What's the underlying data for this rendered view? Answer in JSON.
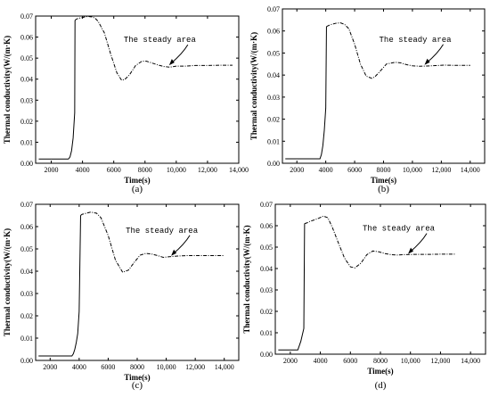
{
  "chart_data": [
    {
      "type": "line",
      "panel": "(a)",
      "xlabel": "Time(s)",
      "ylabel": "Thermal conductivity(W/(m·K)",
      "xlim": [
        1000,
        14000
      ],
      "ylim": [
        0,
        0.07
      ],
      "xticks": [
        "2000",
        "4000",
        "6000",
        "8000",
        "10,000",
        "12,000",
        "14,000"
      ],
      "yticks": [
        "0.00",
        "0.01",
        "0.02",
        "0.03",
        "0.04",
        "0.05",
        "0.06",
        "0.07"
      ],
      "annotation": {
        "text": "The steady area",
        "x": 9600,
        "y": 0.0462
      },
      "series": [
        {
          "x": [
            1200,
            3100,
            3200,
            3300,
            3400,
            3500,
            3520,
            3600,
            3700,
            3800,
            4000,
            4200,
            4400,
            4600,
            4800,
            5000,
            5400,
            5800,
            6200,
            6500,
            6700,
            7000,
            7400,
            7800,
            8100,
            8400,
            8800,
            9200,
            9600,
            10000,
            10600,
            11200,
            12000,
            12800,
            13600
          ],
          "y": [
            0.002,
            0.002,
            0.003,
            0.006,
            0.012,
            0.024,
            0.068,
            0.0685,
            0.0688,
            0.069,
            0.0693,
            0.0697,
            0.0698,
            0.0696,
            0.069,
            0.0675,
            0.062,
            0.052,
            0.043,
            0.0395,
            0.0398,
            0.042,
            0.0465,
            0.0485,
            0.0485,
            0.0478,
            0.0468,
            0.046,
            0.0457,
            0.0462,
            0.0462,
            0.0465,
            0.0465,
            0.0466,
            0.0466
          ]
        }
      ]
    },
    {
      "type": "line",
      "panel": "(b)",
      "xlabel": "Time(s)",
      "ylabel": "Thermal conductivity(W/(m·K)",
      "xlim": [
        1000,
        15000
      ],
      "ylim": [
        0,
        0.07
      ],
      "xticks": [
        "2000",
        "4000",
        "6000",
        "8000",
        "10,000",
        "12,000",
        "14,000"
      ],
      "yticks": [
        "0.00",
        "0.01",
        "0.02",
        "0.03",
        "0.04",
        "0.05",
        "0.06",
        "0.07"
      ],
      "annotation": {
        "text": "The steady area",
        "x": 10900,
        "y": 0.0442
      },
      "series": [
        {
          "x": [
            1200,
            3600,
            3700,
            3800,
            3900,
            4000,
            4050,
            4200,
            4400,
            4700,
            5000,
            5300,
            5600,
            6000,
            6400,
            6800,
            7200,
            7400,
            7800,
            8200,
            8800,
            9200,
            9600,
            10000,
            10500,
            11000,
            11600,
            12200,
            13000,
            14000
          ],
          "y": [
            0.002,
            0.002,
            0.004,
            0.008,
            0.015,
            0.025,
            0.062,
            0.0625,
            0.063,
            0.0635,
            0.0637,
            0.063,
            0.061,
            0.054,
            0.045,
            0.0395,
            0.0385,
            0.0392,
            0.042,
            0.045,
            0.0458,
            0.0455,
            0.0447,
            0.0442,
            0.044,
            0.0441,
            0.0443,
            0.0445,
            0.0444,
            0.0444
          ]
        }
      ]
    },
    {
      "type": "line",
      "panel": "(c)",
      "xlabel": "Time(s)",
      "ylabel": "Thermal conductivity(W/(m·K)",
      "xlim": [
        1000,
        15000
      ],
      "ylim": [
        0,
        0.07
      ],
      "xticks": [
        "2000",
        "4000",
        "6000",
        "8000",
        "10,000",
        "12,000",
        "14,000"
      ],
      "yticks": [
        "0.00",
        "0.01",
        "0.02",
        "0.03",
        "0.04",
        "0.05",
        "0.06",
        "0.07"
      ],
      "annotation": {
        "text": "The steady area",
        "x": 10400,
        "y": 0.0465
      },
      "series": [
        {
          "x": [
            1200,
            3500,
            3600,
            3700,
            3800,
            3900,
            4000,
            4100,
            4200,
            4500,
            4800,
            5200,
            5500,
            6000,
            6500,
            7000,
            7400,
            7800,
            8200,
            8600,
            9000,
            9400,
            9800,
            10200,
            10800,
            11400,
            12000,
            13000,
            14000
          ],
          "y": [
            0.002,
            0.002,
            0.003,
            0.005,
            0.008,
            0.012,
            0.022,
            0.065,
            0.0655,
            0.066,
            0.0665,
            0.066,
            0.064,
            0.056,
            0.045,
            0.0395,
            0.0405,
            0.044,
            0.0472,
            0.048,
            0.0477,
            0.047,
            0.0462,
            0.0465,
            0.0468,
            0.047,
            0.047,
            0.047,
            0.047
          ]
        }
      ]
    },
    {
      "type": "line",
      "panel": "(d)",
      "xlabel": "Time(s)",
      "ylabel": "Thermal conductivity(W/(m·K)",
      "xlim": [
        1000,
        15000
      ],
      "ylim": [
        0,
        0.07
      ],
      "xticks": [
        "2000",
        "4000",
        "6000",
        "8000",
        "10,000",
        "12,000",
        "14,000"
      ],
      "yticks": [
        "0.00",
        "0.01",
        "0.02",
        "0.03",
        "0.04",
        "0.05",
        "0.06",
        "0.07"
      ],
      "annotation": {
        "text": "The steady area",
        "x": 9900,
        "y": 0.0464
      },
      "series": [
        {
          "x": [
            1200,
            2500,
            2600,
            2700,
            2800,
            2900,
            2950,
            3100,
            3300,
            3600,
            3900,
            4200,
            4500,
            4800,
            5200,
            5600,
            6000,
            6300,
            6700,
            7100,
            7500,
            7900,
            8300,
            8700,
            9100,
            9600,
            10200,
            11000,
            12000,
            13000
          ],
          "y": [
            0.002,
            0.002,
            0.004,
            0.006,
            0.009,
            0.012,
            0.061,
            0.0613,
            0.062,
            0.0627,
            0.0635,
            0.0645,
            0.0637,
            0.0592,
            0.052,
            0.045,
            0.0408,
            0.0403,
            0.0425,
            0.0465,
            0.0482,
            0.0478,
            0.047,
            0.0465,
            0.0463,
            0.0465,
            0.0466,
            0.0466,
            0.0467,
            0.0467
          ]
        }
      ]
    }
  ]
}
